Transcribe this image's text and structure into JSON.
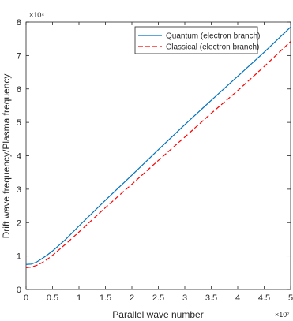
{
  "chart_data": {
    "type": "line",
    "title": "",
    "xlabel": "Parallel wave number",
    "ylabel": "Drift wave frequency/Plasma frequency",
    "x_exponent_label": "×10⁷",
    "y_exponent_label": "×10⁴",
    "xlim": [
      0,
      5
    ],
    "ylim": [
      0,
      8
    ],
    "x_ticks": [
      0,
      0.5,
      1,
      1.5,
      2,
      2.5,
      3,
      3.5,
      4,
      4.5,
      5
    ],
    "x_tick_labels": [
      "0",
      "0.5",
      "1",
      "1.5",
      "2",
      "2.5",
      "3",
      "3.5",
      "4",
      "4.5",
      "5"
    ],
    "y_ticks": [
      0,
      1,
      2,
      3,
      4,
      5,
      6,
      7,
      8
    ],
    "y_tick_labels": [
      "0",
      "1",
      "2",
      "3",
      "4",
      "5",
      "6",
      "7",
      "8"
    ],
    "grid": false,
    "legend_position": "top-right",
    "series": [
      {
        "name": "Quantum (electron branch)",
        "color": "#0072bd",
        "dash": "solid",
        "x": [
          0,
          0.1,
          0.2,
          0.3,
          0.4,
          0.5,
          0.75,
          1,
          1.5,
          2,
          2.5,
          3,
          3.5,
          4,
          4.5,
          5
        ],
        "y": [
          0.75,
          0.76,
          0.82,
          0.92,
          1.03,
          1.15,
          1.5,
          1.9,
          2.67,
          3.42,
          4.18,
          4.93,
          5.66,
          6.38,
          7.1,
          7.85
        ]
      },
      {
        "name": "Classical (electron branch)",
        "color": "#ff0000",
        "dash": "dashed",
        "x": [
          0,
          0.1,
          0.2,
          0.3,
          0.4,
          0.5,
          0.75,
          1,
          1.5,
          2,
          2.5,
          3,
          3.5,
          4,
          4.5,
          5
        ],
        "y": [
          0.65,
          0.67,
          0.72,
          0.8,
          0.9,
          1.02,
          1.36,
          1.72,
          2.45,
          3.15,
          3.86,
          4.56,
          5.27,
          5.95,
          6.67,
          7.42
        ]
      }
    ]
  }
}
